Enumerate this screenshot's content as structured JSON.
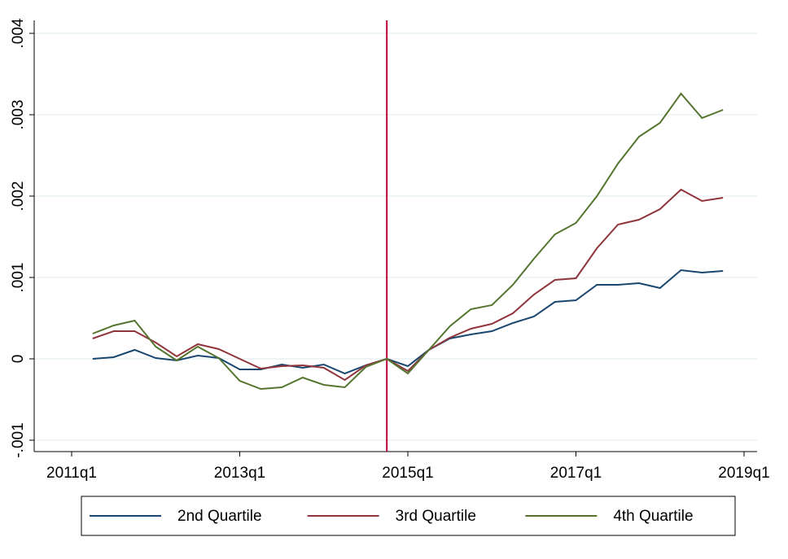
{
  "chart_data": {
    "type": "line",
    "x": [
      "2011q2",
      "2011q3",
      "2011q4",
      "2012q1",
      "2012q2",
      "2012q3",
      "2012q4",
      "2013q1",
      "2013q2",
      "2013q3",
      "2013q4",
      "2014q1",
      "2014q2",
      "2014q3",
      "2014q4",
      "2015q1",
      "2015q2",
      "2015q3",
      "2015q4",
      "2016q1",
      "2016q2",
      "2016q3",
      "2016q4",
      "2017q1",
      "2017q2",
      "2017q3",
      "2017q4",
      "2018q1",
      "2018q2",
      "2018q3",
      "2018q4"
    ],
    "xlim": [
      "2011q1",
      "2019q1"
    ],
    "xticks": [
      "2011q1",
      "2013q1",
      "2015q1",
      "2017q1",
      "2019q1"
    ],
    "ylim": [
      -0.001,
      0.004
    ],
    "yticks": [
      {
        "value": -0.001,
        "label": "-.001"
      },
      0,
      {
        "value": 0.001,
        "label": ".001"
      },
      {
        "value": 0.002,
        "label": ".002"
      },
      {
        "value": 0.003,
        "label": ".003"
      },
      {
        "value": 0.004,
        "label": ".004"
      }
    ],
    "grid": true,
    "xline": {
      "x": "2014q4",
      "color": "#c10534"
    },
    "legend": "bottom",
    "series": [
      {
        "name": "2nd Quartile",
        "color": "#1a476f",
        "values": [
          0,
          2e-05,
          0.00011,
          1e-05,
          -2e-05,
          4e-05,
          1e-05,
          -0.00013,
          -0.00013,
          -7e-05,
          -0.00011,
          -7e-05,
          -0.00018,
          -8e-05,
          0,
          -9e-05,
          0.00011,
          0.00025,
          0.0003,
          0.00034,
          0.00044,
          0.00052,
          0.0007,
          0.00072,
          0.00091,
          0.00091,
          0.00093,
          0.00087,
          0.00109,
          0.00106,
          0.00108
        ]
      },
      {
        "name": "3rd Quartile",
        "color": "#90353b",
        "values": [
          0.00025,
          0.00034,
          0.00034,
          0.0002,
          3e-05,
          0.00018,
          0.00012,
          0,
          -0.00012,
          -9e-05,
          -8e-05,
          -0.00011,
          -0.00026,
          -8e-05,
          0,
          -0.00015,
          0.00011,
          0.00026,
          0.00037,
          0.00043,
          0.00056,
          0.00079,
          0.00097,
          0.00099,
          0.00136,
          0.00165,
          0.00171,
          0.00184,
          0.00208,
          0.00194,
          0.00198
        ]
      },
      {
        "name": "4th Quartile",
        "color": "#55752f",
        "values": [
          0.00031,
          0.00041,
          0.00047,
          0.00015,
          -2e-05,
          0.00015,
          1e-05,
          -0.00027,
          -0.00037,
          -0.00035,
          -0.00023,
          -0.00032,
          -0.00035,
          -0.0001,
          0,
          -0.00018,
          0.00011,
          0.0004,
          0.00061,
          0.00066,
          0.00091,
          0.00123,
          0.00153,
          0.00167,
          0.002,
          0.0024,
          0.00273,
          0.0029,
          0.00326,
          0.00296,
          0.00306
        ]
      }
    ]
  }
}
